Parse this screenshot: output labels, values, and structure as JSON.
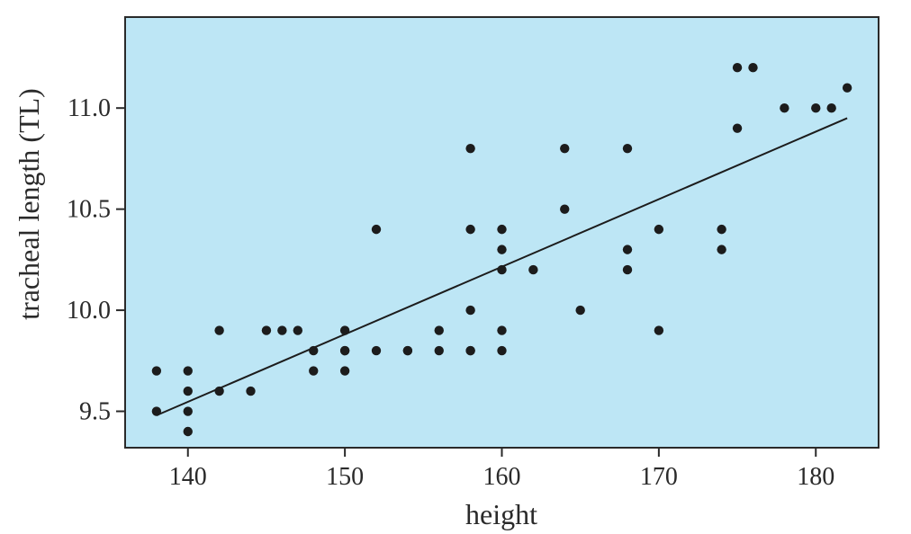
{
  "chart_data": {
    "type": "scatter",
    "title": "",
    "xlabel": "height",
    "ylabel": "tracheal length (TL)",
    "xlim": [
      136,
      184
    ],
    "ylim": [
      9.32,
      11.45
    ],
    "x_ticks": [
      140,
      150,
      160,
      170,
      180
    ],
    "y_ticks": [
      9.5,
      10.0,
      10.5,
      11.0
    ],
    "x_tick_labels": [
      "140",
      "150",
      "160",
      "170",
      "180"
    ],
    "y_tick_labels": [
      "9.5",
      "10.0",
      "10.5",
      "11.0"
    ],
    "grid": false,
    "colors": {
      "plot_background": "#bde6f5",
      "points": "#1c1c1c",
      "line": "#1c1c1c",
      "frame": "#2a2a2a"
    },
    "series": [
      {
        "type": "scatter",
        "points": [
          [
            138,
            9.7
          ],
          [
            138,
            9.5
          ],
          [
            140,
            9.7
          ],
          [
            140,
            9.6
          ],
          [
            140,
            9.5
          ],
          [
            140,
            9.4
          ],
          [
            142,
            9.9
          ],
          [
            142,
            9.6
          ],
          [
            144,
            9.6
          ],
          [
            145,
            9.9
          ],
          [
            146,
            9.9
          ],
          [
            147,
            9.9
          ],
          [
            148,
            9.8
          ],
          [
            148,
            9.7
          ],
          [
            150,
            9.9
          ],
          [
            150,
            9.8
          ],
          [
            150,
            9.8
          ],
          [
            150,
            9.7
          ],
          [
            152,
            10.4
          ],
          [
            152,
            9.8
          ],
          [
            154,
            9.8
          ],
          [
            154,
            9.8
          ],
          [
            156,
            9.9
          ],
          [
            156,
            9.8
          ],
          [
            158,
            10.8
          ],
          [
            158,
            10.4
          ],
          [
            158,
            10.0
          ],
          [
            158,
            9.8
          ],
          [
            158,
            9.8
          ],
          [
            160,
            10.4
          ],
          [
            160,
            10.3
          ],
          [
            160,
            10.2
          ],
          [
            160,
            9.9
          ],
          [
            160,
            9.8
          ],
          [
            162,
            10.2
          ],
          [
            164,
            10.8
          ],
          [
            164,
            10.5
          ],
          [
            165,
            10.0
          ],
          [
            168,
            10.8
          ],
          [
            168,
            10.3
          ],
          [
            168,
            10.2
          ],
          [
            170,
            10.4
          ],
          [
            170,
            9.9
          ],
          [
            174,
            10.4
          ],
          [
            174,
            10.3
          ],
          [
            175,
            11.2
          ],
          [
            175,
            10.9
          ],
          [
            176,
            11.2
          ],
          [
            178,
            11.0
          ],
          [
            180,
            11.0
          ],
          [
            181,
            11.0
          ],
          [
            182,
            11.1
          ]
        ]
      },
      {
        "type": "line",
        "points": [
          [
            138,
            9.48
          ],
          [
            182,
            10.95
          ]
        ]
      }
    ]
  }
}
